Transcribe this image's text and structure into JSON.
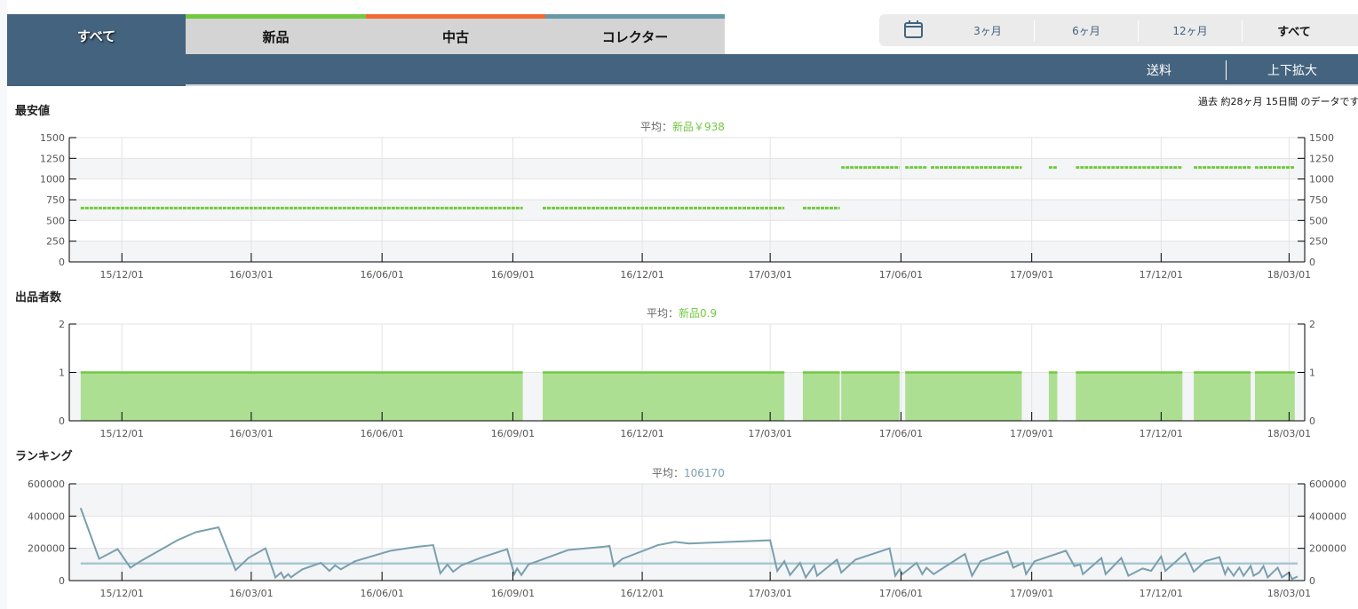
{
  "tabs": [
    {
      "label": "すべて",
      "active": true,
      "color": "#44637e"
    },
    {
      "label": "新品",
      "color": "#72c940"
    },
    {
      "label": "中古",
      "color": "#f26a35"
    },
    {
      "label": "コレクター",
      "color": "#6598a9"
    }
  ],
  "period": {
    "icon": "calendar-icon",
    "options": [
      "3ヶ月",
      "6ヶ月",
      "12ヶ月",
      "すべて"
    ],
    "selected": "すべて"
  },
  "toolbar": {
    "shipping": "送料",
    "zoom": "上下拡大"
  },
  "note": "過去 約28ヶ月 15日間 のデータです",
  "colors": {
    "new": "#72c940",
    "new_fill": "#addf93",
    "rank": "#7a9fae",
    "rank_avg": "#a9c7d3",
    "band": "#f4f5f7"
  },
  "x_axis": {
    "xlim": [
      "2015-10-25",
      "2018-03-12"
    ],
    "ticks": [
      {
        "date": "2015-12-01",
        "label": "15/12/01"
      },
      {
        "date": "2016-03-01",
        "label": "16/03/01"
      },
      {
        "date": "2016-06-01",
        "label": "16/06/01"
      },
      {
        "date": "2016-09-01",
        "label": "16/09/01"
      },
      {
        "date": "2016-12-01",
        "label": "16/12/01"
      },
      {
        "date": "2017-03-01",
        "label": "17/03/01"
      },
      {
        "date": "2017-06-01",
        "label": "17/06/01"
      },
      {
        "date": "2017-09-01",
        "label": "17/09/01"
      },
      {
        "date": "2017-12-01",
        "label": "17/12/01"
      },
      {
        "date": "2018-03-01",
        "label": "18/03/01"
      }
    ]
  },
  "chart_data": [
    {
      "type": "line",
      "title": "最安値",
      "avg_label": "平均：",
      "avg_series": "新品",
      "avg_value": "￥938",
      "ylim": [
        0,
        1500
      ],
      "yticks": [
        0,
        250,
        500,
        750,
        1000,
        1250,
        1500
      ],
      "series_name": "新品",
      "segments": [
        {
          "from": "2015-11-02",
          "to": "2016-09-08",
          "value": 650
        },
        {
          "from": "2016-09-22",
          "to": "2017-03-11",
          "value": 650
        },
        {
          "from": "2017-03-24",
          "to": "2017-04-19",
          "value": 650
        },
        {
          "from": "2017-04-20",
          "to": "2017-05-31",
          "value": 1140
        },
        {
          "from": "2017-06-04",
          "to": "2017-06-19",
          "value": 1140
        },
        {
          "from": "2017-06-22",
          "to": "2017-08-25",
          "value": 1140
        },
        {
          "from": "2017-09-13",
          "to": "2017-09-19",
          "value": 1140
        },
        {
          "from": "2017-10-02",
          "to": "2017-12-16",
          "value": 1140
        },
        {
          "from": "2017-12-24",
          "to": "2018-02-02",
          "value": 1140
        },
        {
          "from": "2018-02-05",
          "to": "2018-03-05",
          "value": 1140
        }
      ]
    },
    {
      "type": "area",
      "title": "出品者数",
      "avg_label": "平均：",
      "avg_series": "新品",
      "avg_value": "0.9",
      "ylim": [
        0,
        2
      ],
      "yticks": [
        0,
        1,
        2
      ],
      "series_name": "新品",
      "segments": [
        {
          "from": "2015-11-02",
          "to": "2016-09-08",
          "value": 1
        },
        {
          "from": "2016-09-22",
          "to": "2017-03-11",
          "value": 1
        },
        {
          "from": "2017-03-24",
          "to": "2017-04-19",
          "value": 1
        },
        {
          "from": "2017-04-20",
          "to": "2017-05-31",
          "value": 1
        },
        {
          "from": "2017-06-04",
          "to": "2017-08-25",
          "value": 1
        },
        {
          "from": "2017-09-13",
          "to": "2017-09-19",
          "value": 1
        },
        {
          "from": "2017-10-02",
          "to": "2017-12-16",
          "value": 1
        },
        {
          "from": "2017-12-24",
          "to": "2018-02-02",
          "value": 1
        },
        {
          "from": "2018-02-05",
          "to": "2018-03-05",
          "value": 1
        }
      ]
    },
    {
      "type": "line",
      "title": "ランキング",
      "avg_label": "平均：",
      "avg_series": "",
      "avg_value": "106170",
      "avg": 106170,
      "ylim": [
        0,
        600000
      ],
      "yticks": [
        0,
        200000,
        400000,
        600000
      ],
      "points": [
        [
          "2015-11-02",
          450000
        ],
        [
          "2015-11-15",
          135000
        ],
        [
          "2015-11-28",
          195000
        ],
        [
          "2015-12-07",
          80000
        ],
        [
          "2015-12-14",
          120000
        ],
        [
          "2016-01-09",
          250000
        ],
        [
          "2016-01-22",
          300000
        ],
        [
          "2016-02-07",
          330000
        ],
        [
          "2016-02-19",
          65000
        ],
        [
          "2016-02-28",
          140000
        ],
        [
          "2016-03-11",
          200000
        ],
        [
          "2016-03-18",
          20000
        ],
        [
          "2016-03-22",
          50000
        ],
        [
          "2016-03-24",
          15000
        ],
        [
          "2016-03-27",
          40000
        ],
        [
          "2016-03-29",
          20000
        ],
        [
          "2016-04-01",
          40000
        ],
        [
          "2016-04-06",
          70000
        ],
        [
          "2016-04-19",
          110000
        ],
        [
          "2016-04-25",
          60000
        ],
        [
          "2016-04-29",
          95000
        ],
        [
          "2016-05-03",
          70000
        ],
        [
          "2016-05-13",
          120000
        ],
        [
          "2016-06-07",
          185000
        ],
        [
          "2016-06-26",
          210000
        ],
        [
          "2016-07-07",
          220000
        ],
        [
          "2016-07-12",
          45000
        ],
        [
          "2016-07-17",
          100000
        ],
        [
          "2016-07-21",
          55000
        ],
        [
          "2016-07-27",
          95000
        ],
        [
          "2016-08-09",
          140000
        ],
        [
          "2016-08-28",
          195000
        ],
        [
          "2016-09-02",
          40000
        ],
        [
          "2016-09-04",
          75000
        ],
        [
          "2016-09-07",
          35000
        ],
        [
          "2016-09-12",
          100000
        ],
        [
          "2016-10-10",
          190000
        ],
        [
          "2016-11-04",
          210000
        ],
        [
          "2016-11-08",
          215000
        ],
        [
          "2016-11-11",
          90000
        ],
        [
          "2016-11-17",
          135000
        ],
        [
          "2016-12-12",
          220000
        ],
        [
          "2016-12-24",
          240000
        ],
        [
          "2017-01-03",
          230000
        ],
        [
          "2017-01-18",
          235000
        ],
        [
          "2017-03-01",
          250000
        ],
        [
          "2017-03-06",
          60000
        ],
        [
          "2017-03-11",
          120000
        ],
        [
          "2017-03-15",
          35000
        ],
        [
          "2017-03-22",
          110000
        ],
        [
          "2017-03-26",
          20000
        ],
        [
          "2017-04-01",
          95000
        ],
        [
          "2017-04-03",
          30000
        ],
        [
          "2017-04-17",
          130000
        ],
        [
          "2017-04-20",
          50000
        ],
        [
          "2017-04-30",
          130000
        ],
        [
          "2017-05-24",
          200000
        ],
        [
          "2017-05-28",
          30000
        ],
        [
          "2017-05-31",
          70000
        ],
        [
          "2017-06-02",
          40000
        ],
        [
          "2017-06-12",
          110000
        ],
        [
          "2017-06-16",
          40000
        ],
        [
          "2017-06-19",
          80000
        ],
        [
          "2017-06-24",
          40000
        ],
        [
          "2017-07-16",
          165000
        ],
        [
          "2017-07-21",
          30000
        ],
        [
          "2017-07-27",
          120000
        ],
        [
          "2017-08-15",
          180000
        ],
        [
          "2017-08-19",
          80000
        ],
        [
          "2017-08-26",
          110000
        ],
        [
          "2017-08-28",
          40000
        ],
        [
          "2017-09-03",
          120000
        ],
        [
          "2017-09-25",
          185000
        ],
        [
          "2017-10-01",
          90000
        ],
        [
          "2017-10-05",
          100000
        ],
        [
          "2017-10-07",
          40000
        ],
        [
          "2017-10-20",
          140000
        ],
        [
          "2017-10-23",
          40000
        ],
        [
          "2017-11-03",
          140000
        ],
        [
          "2017-11-08",
          30000
        ],
        [
          "2017-11-18",
          75000
        ],
        [
          "2017-11-24",
          60000
        ],
        [
          "2017-12-01",
          150000
        ],
        [
          "2017-12-04",
          60000
        ],
        [
          "2017-12-18",
          170000
        ],
        [
          "2017-12-24",
          55000
        ],
        [
          "2018-01-01",
          120000
        ],
        [
          "2018-01-11",
          145000
        ],
        [
          "2018-01-15",
          40000
        ],
        [
          "2018-01-17",
          80000
        ],
        [
          "2018-01-21",
          30000
        ],
        [
          "2018-01-25",
          80000
        ],
        [
          "2018-01-28",
          30000
        ],
        [
          "2018-02-02",
          90000
        ],
        [
          "2018-02-04",
          30000
        ],
        [
          "2018-02-08",
          50000
        ],
        [
          "2018-02-11",
          90000
        ],
        [
          "2018-02-14",
          20000
        ],
        [
          "2018-02-21",
          80000
        ],
        [
          "2018-02-24",
          20000
        ],
        [
          "2018-03-01",
          50000
        ],
        [
          "2018-03-03",
          10000
        ],
        [
          "2018-03-07",
          25000
        ]
      ]
    }
  ]
}
